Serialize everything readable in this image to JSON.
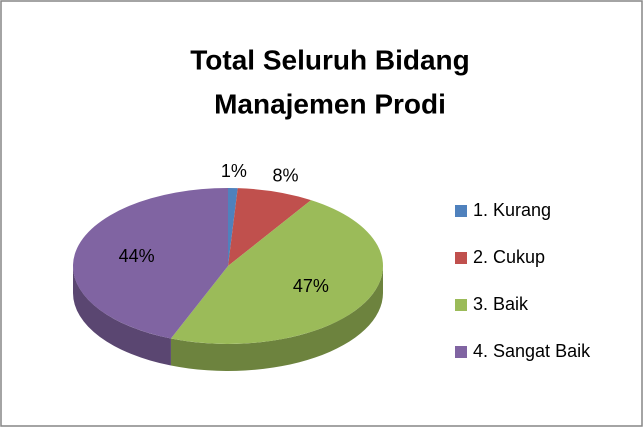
{
  "chart_data": {
    "type": "pie3d",
    "title": [
      "Total Seluruh Bidang",
      "Manajemen Prodi"
    ],
    "categories": [
      "1. Kurang",
      "2. Cukup",
      "3. Baik",
      "4. Sangat Baik"
    ],
    "values": [
      1,
      8,
      47,
      44
    ],
    "value_labels": [
      "1%",
      "8%",
      "47%",
      "44%"
    ],
    "colors": [
      "#4f81bd",
      "#c0504d",
      "#9bbb59",
      "#8064a2"
    ],
    "legend": "right"
  }
}
